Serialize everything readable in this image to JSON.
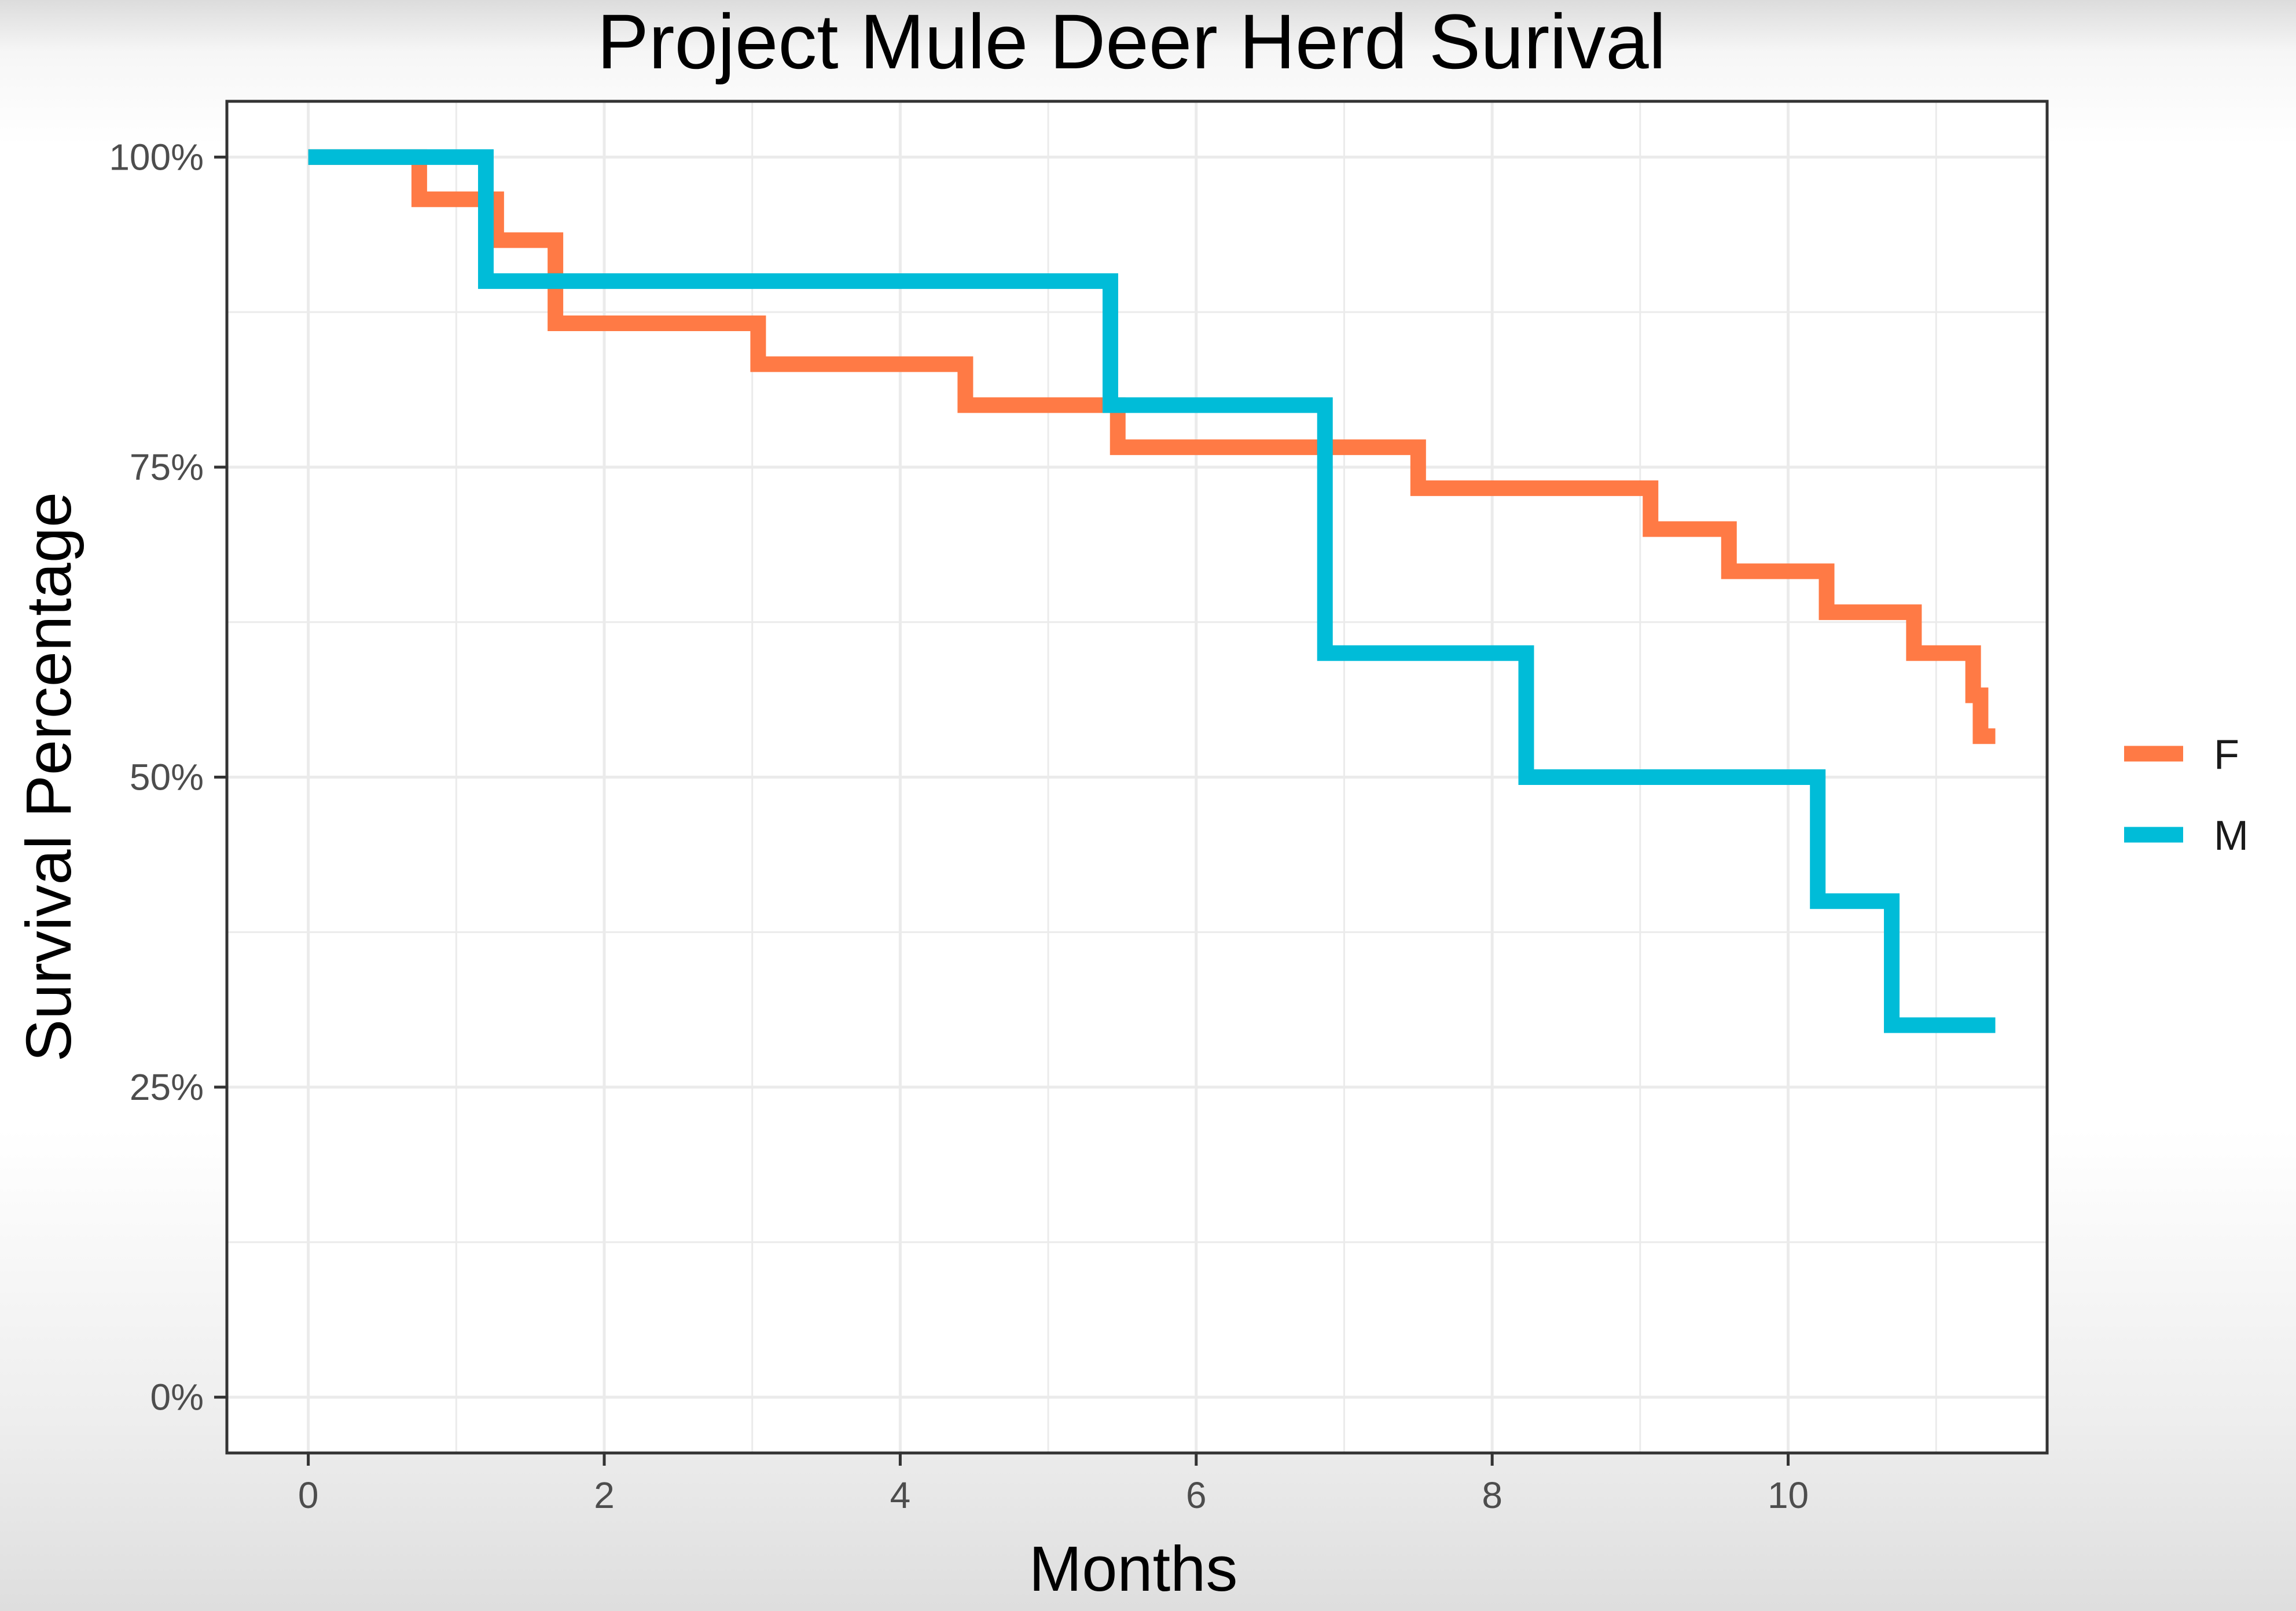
{
  "colors": {
    "F": "#ff7a45",
    "M": "#00bcd8",
    "grid": "#ebebeb",
    "panel_border": "#333333"
  },
  "chart_data": {
    "type": "line",
    "step": true,
    "title": "Project Mule Deer Herd Surival",
    "xlabel": "Months",
    "ylabel": "Survival Percentage",
    "xlim": [
      -0.55,
      11.75
    ],
    "ylim": [
      -0.045,
      1.045
    ],
    "xticks": [
      0,
      2,
      4,
      6,
      8,
      10
    ],
    "xtick_labels": [
      "0",
      "2",
      "4",
      "6",
      "8",
      "10"
    ],
    "yticks": [
      0,
      0.25,
      0.5,
      0.75,
      1
    ],
    "ytick_labels": [
      "0%",
      "25%",
      "50%",
      "75%",
      "100%"
    ],
    "grid": true,
    "legend_position": "right",
    "series": [
      {
        "name": "F",
        "points": [
          [
            0,
            1.0
          ],
          [
            0.75,
            0.966
          ],
          [
            1.27,
            0.933
          ],
          [
            1.67,
            0.866
          ],
          [
            3.04,
            0.833
          ],
          [
            4.44,
            0.8
          ],
          [
            5.47,
            0.766
          ],
          [
            7.5,
            0.733
          ],
          [
            9.07,
            0.7
          ],
          [
            9.6,
            0.666
          ],
          [
            10.26,
            0.633
          ],
          [
            10.85,
            0.6
          ],
          [
            11.25,
            0.566
          ],
          [
            11.3,
            0.533
          ],
          [
            11.4,
            0.533
          ]
        ]
      },
      {
        "name": "M",
        "points": [
          [
            0,
            1.0
          ],
          [
            1.2,
            0.9
          ],
          [
            5.42,
            0.8
          ],
          [
            6.87,
            0.6
          ],
          [
            8.23,
            0.5
          ],
          [
            10.2,
            0.4
          ],
          [
            10.7,
            0.3
          ],
          [
            11.4,
            0.3
          ]
        ]
      }
    ]
  }
}
